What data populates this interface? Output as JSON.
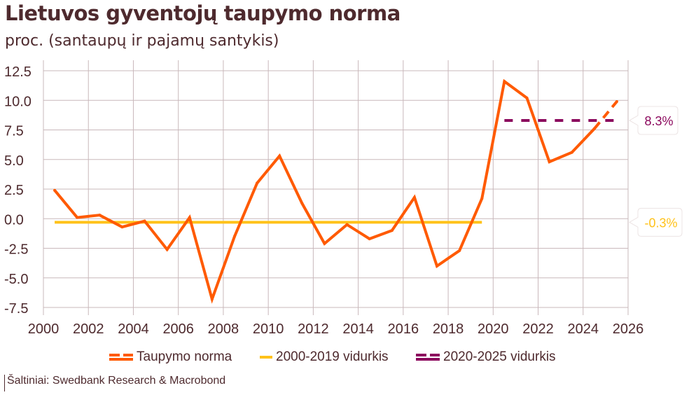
{
  "title": "Lietuvos gyventojų taupymo norma",
  "subtitle": "proc. (santaupų ir pajamų santykis)",
  "source": "Šaltiniai: Swedbank Research & Macrobond",
  "chart_data": {
    "type": "line",
    "title": "Lietuvos gyventojų taupymo norma",
    "ylabel": "proc. (santaupų ir pajamų santykis)",
    "xlim": [
      2000,
      2026
    ],
    "ylim": [
      -7.5,
      12.5
    ],
    "xticks": [
      "2000",
      "2002",
      "2004",
      "2006",
      "2008",
      "2010",
      "2012",
      "2014",
      "2016",
      "2018",
      "2020",
      "2022",
      "2024",
      "2026"
    ],
    "yticks": [
      "12.5",
      "10.0",
      "7.5",
      "5.0",
      "2.5",
      "0.0",
      "-2.5",
      "-5.0",
      "-7.5"
    ],
    "grid": true,
    "legend": "bottom",
    "series": [
      {
        "name": "Taupymo norma",
        "color": "#ff5a00",
        "x": [
          2000.5,
          2001.5,
          2002.5,
          2003.5,
          2004.5,
          2005.5,
          2006.5,
          2007.5,
          2008.5,
          2009.5,
          2010.5,
          2011.5,
          2012.5,
          2013.5,
          2014.5,
          2015.5,
          2016.5,
          2017.5,
          2018.5,
          2019.5,
          2020.5,
          2021.5,
          2022.5,
          2023.5,
          2024.5,
          2025.5
        ],
        "values": [
          2.4,
          0.1,
          0.3,
          -0.7,
          -0.2,
          -2.6,
          0.1,
          -6.8,
          -1.5,
          3.0,
          5.3,
          1.3,
          -2.1,
          -0.5,
          -1.7,
          -1.0,
          1.8,
          -4.0,
          -2.7,
          1.7,
          11.6,
          10.2,
          4.8,
          5.6,
          7.6,
          9.9
        ],
        "forecast_from": 2024.5
      },
      {
        "name": "2000-2019 vidurkis",
        "color": "#ffc21a",
        "x": [
          2000.5,
          2019.5
        ],
        "values": [
          -0.3,
          -0.3
        ],
        "label": "-0.3%"
      },
      {
        "name": "2020-2025 vidurkis",
        "color": "#8c0a5e",
        "x": [
          2020.5,
          2025.5
        ],
        "values": [
          8.3,
          8.3
        ],
        "label": "8.3%",
        "dashed": true
      }
    ]
  }
}
